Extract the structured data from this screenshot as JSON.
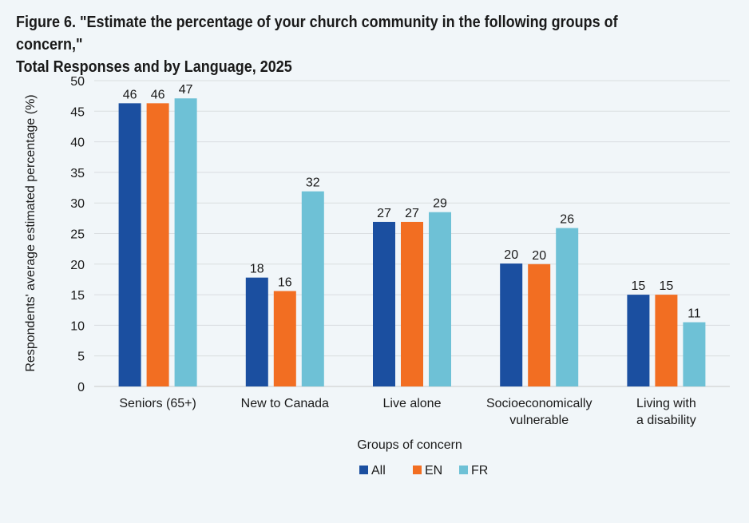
{
  "figure": {
    "title_line1": "Figure 6. \"Estimate the percentage of your church community in the following groups of concern,\"",
    "title_line2": "Total Responses and by Language, 2025"
  },
  "chart_data": {
    "type": "bar",
    "title": "Figure 6. \"Estimate the percentage of your church community in the following groups of concern,\" Total Responses and by Language, 2025",
    "xlabel": "Groups of concern",
    "ylabel": "Respondents' average estimated percentage (%)",
    "ylim": [
      0,
      50
    ],
    "yticks": [
      0,
      5,
      10,
      15,
      20,
      25,
      30,
      35,
      40,
      45,
      50
    ],
    "grid": true,
    "legend_position": "bottom",
    "categories": [
      [
        "Seniors (65+)"
      ],
      [
        "New to Canada"
      ],
      [
        "Live alone"
      ],
      [
        "Socioeconomically",
        "vulnerable"
      ],
      [
        "Living with",
        "a disability"
      ]
    ],
    "series": [
      {
        "name": "All",
        "color": "#1b4fa0",
        "values": [
          46.3,
          17.8,
          26.9,
          20.1,
          15.0
        ],
        "labels": [
          "46",
          "18",
          "27",
          "20",
          "15"
        ]
      },
      {
        "name": "EN",
        "color": "#f26e22",
        "values": [
          46.3,
          15.6,
          26.9,
          20.0,
          15.0
        ],
        "labels": [
          "46",
          "16",
          "27",
          "20",
          "15"
        ]
      },
      {
        "name": "FR",
        "color": "#6ec1d6",
        "values": [
          47.1,
          31.9,
          28.5,
          25.9,
          10.5
        ],
        "labels": [
          "47",
          "32",
          "29",
          "26",
          "11"
        ]
      }
    ]
  }
}
